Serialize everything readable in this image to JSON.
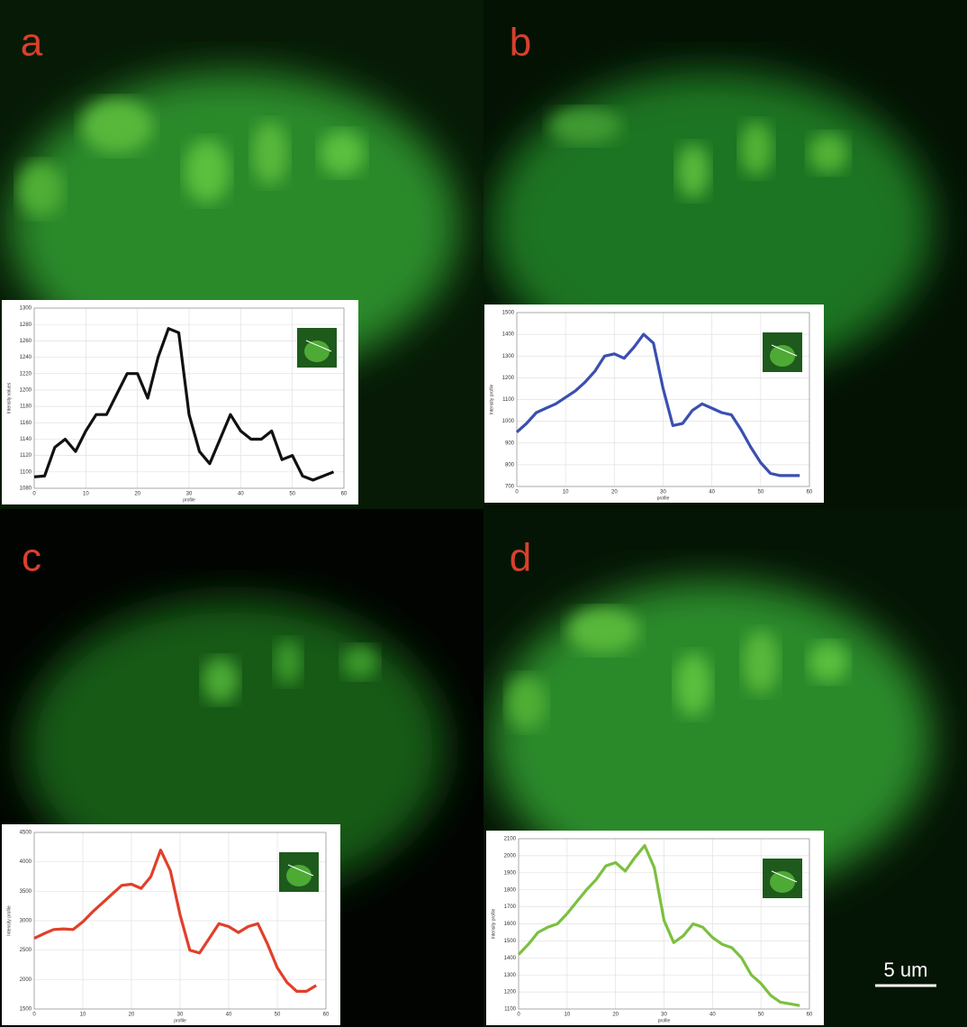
{
  "chart_data": [
    {
      "type": "line",
      "label": "a",
      "xlabel": "profile",
      "ylabel": "Intensity values",
      "color": "#111111",
      "grid": true,
      "x": [
        0,
        2,
        4,
        6,
        8,
        10,
        12,
        14,
        16,
        18,
        20,
        22,
        24,
        26,
        28,
        30,
        32,
        34,
        36,
        38,
        40,
        42,
        44,
        46,
        48,
        50,
        52,
        54,
        56,
        58
      ],
      "values": [
        1094,
        1095,
        1130,
        1140,
        1125,
        1150,
        1170,
        1170,
        1195,
        1220,
        1220,
        1190,
        1240,
        1275,
        1270,
        1170,
        1125,
        1110,
        1140,
        1170,
        1150,
        1140,
        1140,
        1150,
        1115,
        1120,
        1095,
        1090,
        1095,
        1100
      ],
      "xlim": [
        0,
        60
      ],
      "xticks": [
        0,
        10,
        20,
        30,
        40,
        50,
        60
      ],
      "ylim": [
        1080,
        1300
      ],
      "yticks": [
        1080,
        1100,
        1120,
        1140,
        1160,
        1180,
        1200,
        1220,
        1240,
        1260,
        1280,
        1300
      ]
    },
    {
      "type": "line",
      "label": "b",
      "xlabel": "profile",
      "ylabel": "Intensity profile",
      "color": "#3a4fb0",
      "grid": true,
      "x": [
        0,
        2,
        4,
        6,
        8,
        10,
        12,
        14,
        16,
        18,
        20,
        22,
        24,
        26,
        28,
        30,
        32,
        34,
        36,
        38,
        40,
        42,
        44,
        46,
        48,
        50,
        52,
        54,
        56,
        58
      ],
      "values": [
        950,
        990,
        1040,
        1060,
        1080,
        1110,
        1140,
        1180,
        1230,
        1300,
        1310,
        1290,
        1340,
        1400,
        1360,
        1150,
        980,
        990,
        1050,
        1080,
        1060,
        1040,
        1030,
        960,
        880,
        810,
        760,
        750,
        750,
        750
      ],
      "xlim": [
        0,
        60
      ],
      "xticks": [
        0,
        10,
        20,
        30,
        40,
        50,
        60
      ],
      "ylim": [
        700,
        1500
      ],
      "yticks": [
        700,
        800,
        900,
        1000,
        1100,
        1200,
        1300,
        1400,
        1500
      ]
    },
    {
      "type": "line",
      "label": "c",
      "xlabel": "profile",
      "ylabel": "Intensity profile",
      "color": "#e0402a",
      "grid": true,
      "x": [
        0,
        2,
        4,
        6,
        8,
        10,
        12,
        14,
        16,
        18,
        20,
        22,
        24,
        26,
        28,
        30,
        32,
        34,
        36,
        38,
        40,
        42,
        44,
        46,
        48,
        50,
        52,
        54,
        56,
        58
      ],
      "values": [
        2700,
        2780,
        2850,
        2860,
        2850,
        2980,
        3150,
        3300,
        3450,
        3600,
        3620,
        3550,
        3750,
        4200,
        3850,
        3100,
        2500,
        2450,
        2700,
        2950,
        2900,
        2800,
        2900,
        2950,
        2600,
        2200,
        1950,
        1800,
        1800,
        1900
      ],
      "xlim": [
        0,
        60
      ],
      "xticks": [
        0,
        10,
        20,
        30,
        40,
        50,
        60
      ],
      "ylim": [
        1500,
        4500
      ],
      "yticks": [
        1500,
        2000,
        2500,
        3000,
        3500,
        4000,
        4500
      ]
    },
    {
      "type": "line",
      "label": "d",
      "xlabel": "profile",
      "ylabel": "Intensity profile",
      "color": "#7cc040",
      "grid": true,
      "x": [
        0,
        2,
        4,
        6,
        8,
        10,
        12,
        14,
        16,
        18,
        20,
        22,
        24,
        26,
        28,
        30,
        32,
        34,
        36,
        38,
        40,
        42,
        44,
        46,
        48,
        50,
        52,
        54,
        56,
        58
      ],
      "values": [
        1420,
        1480,
        1550,
        1580,
        1600,
        1660,
        1730,
        1800,
        1860,
        1940,
        1960,
        1910,
        1990,
        2060,
        1930,
        1620,
        1490,
        1530,
        1600,
        1580,
        1520,
        1480,
        1460,
        1400,
        1300,
        1250,
        1180,
        1140,
        1130,
        1120
      ],
      "xlim": [
        0,
        60
      ],
      "xticks": [
        0,
        10,
        20,
        30,
        40,
        50,
        60
      ],
      "ylim": [
        1100,
        2100
      ],
      "yticks": [
        1100,
        1200,
        1300,
        1400,
        1500,
        1600,
        1700,
        1800,
        1900,
        2000,
        2100
      ]
    }
  ],
  "scale_bar": "5 um"
}
